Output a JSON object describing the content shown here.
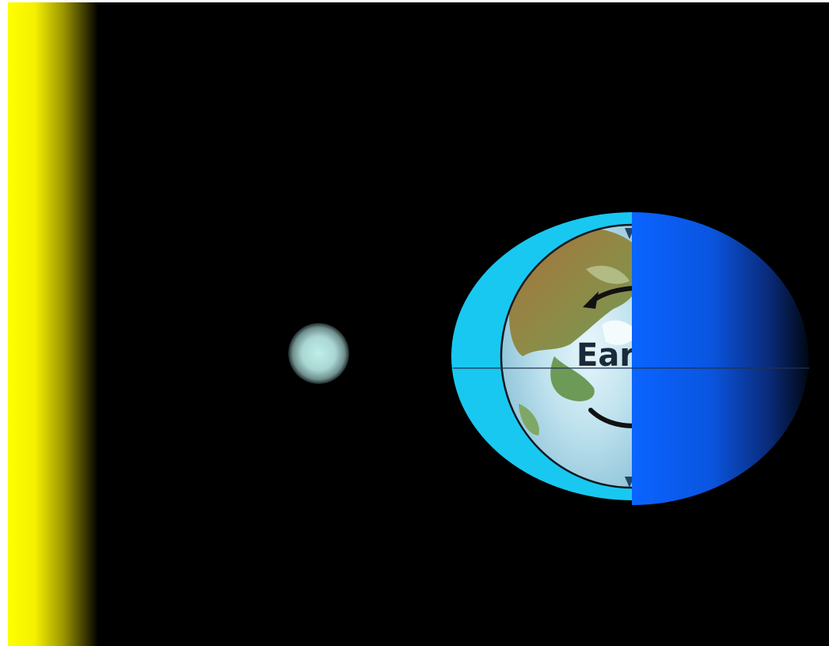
{
  "diagram": {
    "earth_label": "Ear",
    "colors": {
      "background": "#000000",
      "sun": "#ffff00",
      "moon": "#b8e6e2",
      "atmosphere": "#19c8f0",
      "night_side": "#0a5cff",
      "label": "#1a2a3a"
    },
    "icons": [
      "sun-icon",
      "moon-icon",
      "earth-icon",
      "rotation-arrow-icon"
    ]
  }
}
